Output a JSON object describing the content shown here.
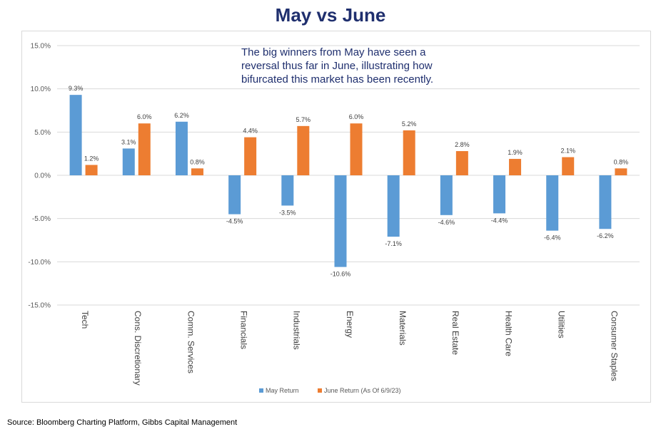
{
  "title": "May vs June",
  "annotation": "The big winners from May have seen a reversal thus far in June, illustrating how bifurcated this market has been recently.",
  "source": "Source: Bloomberg Charting Platform, Gibbs Capital Management",
  "colors": {
    "may": "#5b9bd5",
    "june": "#ed7d31",
    "title": "#1f2f6e",
    "grid": "#d9d9d9"
  },
  "chart_data": {
    "type": "bar",
    "title": "May vs June",
    "xlabel": "",
    "ylabel": "",
    "ylim": [
      -15,
      15
    ],
    "yticks": [
      15,
      10,
      5,
      0,
      -5,
      -10,
      -15
    ],
    "ytick_labels": [
      "15.0%",
      "10.0%",
      "5.0%",
      "0.0%",
      "-5.0%",
      "-10.0%",
      "-15.0%"
    ],
    "grid": true,
    "legend_position": "bottom",
    "categories": [
      "Tech",
      "Cons. Discretionary",
      "Comm. Services",
      "Financials",
      "Industrials",
      "Energy",
      "Materials",
      "Real Estate",
      "Health Care",
      "Utilities",
      "Consumer Staples"
    ],
    "series": [
      {
        "name": "May Return",
        "values": [
          9.3,
          3.1,
          6.2,
          -4.5,
          -3.5,
          -10.6,
          -7.1,
          -4.6,
          -4.4,
          -6.4,
          -6.2
        ]
      },
      {
        "name": "June Return (As Of 6/9/23)",
        "values": [
          1.2,
          6.0,
          0.8,
          4.4,
          5.7,
          6.0,
          5.2,
          2.8,
          1.9,
          2.1,
          0.8
        ]
      }
    ]
  }
}
